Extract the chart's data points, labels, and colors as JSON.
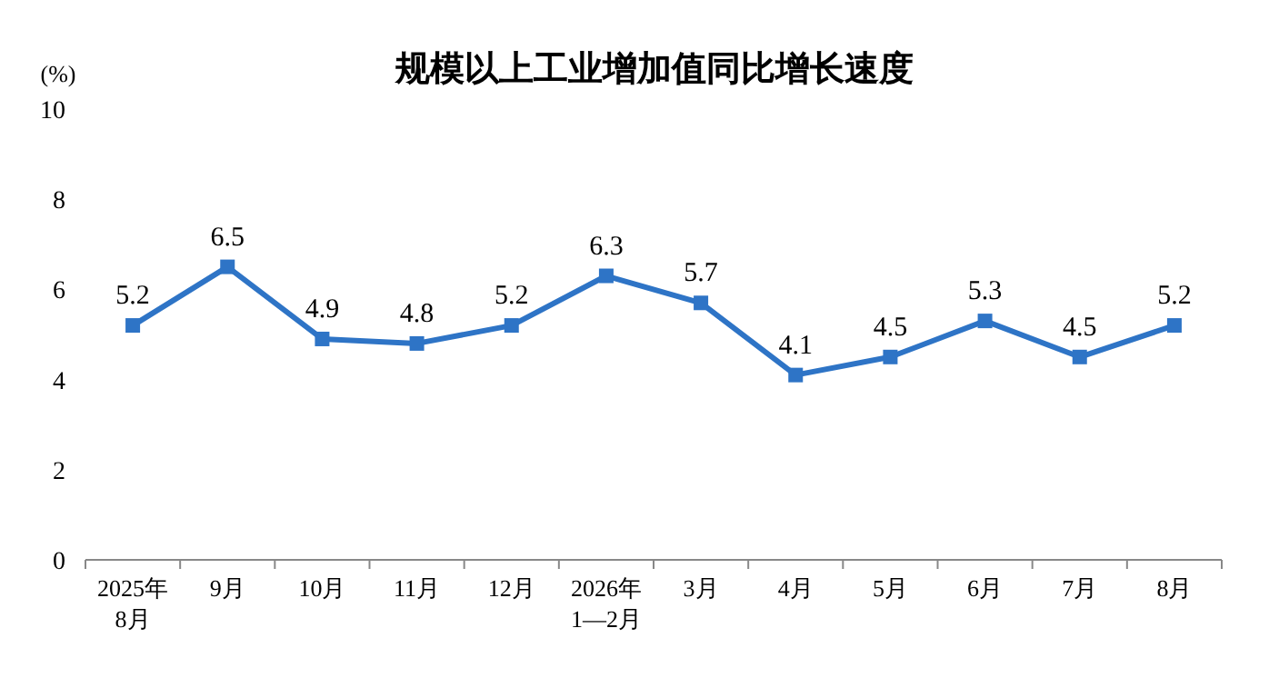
{
  "chart_data": {
    "type": "line",
    "title": "规模以上工业增加值同比增长速度",
    "ylabel": "(%)",
    "categories": [
      "2025年\n8月",
      "9月",
      "10月",
      "11月",
      "12月",
      "2026年\n1—2月",
      "3月",
      "4月",
      "5月",
      "6月",
      "7月",
      "8月"
    ],
    "series": [
      {
        "color": "#2e74c6",
        "values": [
          5.2,
          6.5,
          4.9,
          4.8,
          5.2,
          6.3,
          5.7,
          4.1,
          4.5,
          5.3,
          4.5,
          5.2
        ]
      }
    ],
    "ylim": [
      0,
      10
    ],
    "yticks": [
      0,
      2,
      4,
      6,
      8,
      10
    ],
    "marker": "square",
    "line_style": "solid",
    "data_labels": true,
    "grid": false
  }
}
